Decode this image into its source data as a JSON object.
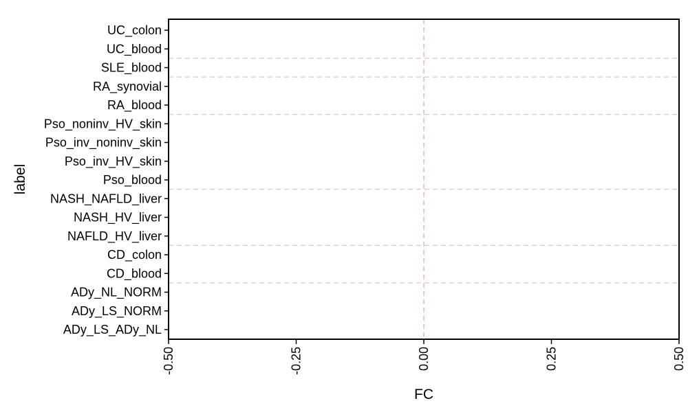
{
  "chart_data": {
    "type": "scatter",
    "title": "",
    "xlabel": "FC",
    "ylabel": "label",
    "xlim": [
      -0.5,
      0.5
    ],
    "x_ticks": [
      -0.5,
      -0.25,
      0,
      0.25,
      0.5
    ],
    "x_tick_labels": [
      "-0.50",
      "-0.25",
      "0.00",
      "0.25",
      "0.50"
    ],
    "categories": [
      "UC_colon",
      "UC_blood",
      "SLE_blood",
      "RA_synovial",
      "RA_blood",
      "Pso_noninv_HV_skin",
      "Pso_inv_noninv_skin",
      "Pso_inv_HV_skin",
      "Pso_blood",
      "NASH_NAFLD_liver",
      "NASH_HV_liver",
      "NAFLD_HV_liver",
      "CD_colon",
      "CD_blood",
      "ADy_NL_NORM",
      "ADy_LS_NORM",
      "ADy_LS_ADy_NL"
    ],
    "group_separators_after": [
      "UC_blood",
      "SLE_blood",
      "RA_blood",
      "Pso_blood",
      "NAFLD_HV_liver",
      "CD_blood"
    ],
    "reference_line_x": 0,
    "reference_line_color": "#f4a3b0",
    "separator_color": "#cccccc",
    "points": [],
    "grid": false
  }
}
